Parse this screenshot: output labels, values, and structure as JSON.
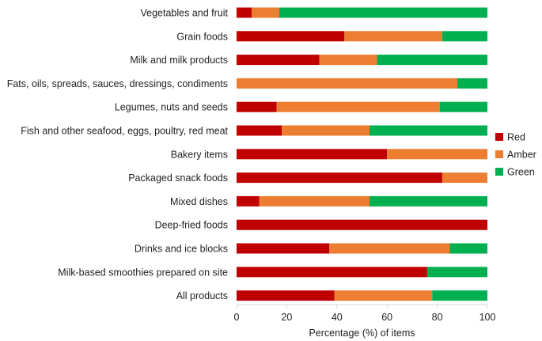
{
  "chart_data": {
    "type": "bar",
    "orientation": "horizontal",
    "stacked": true,
    "title": "",
    "xlabel": "Percentage (%) of items",
    "ylabel": "",
    "xlim": [
      0,
      100
    ],
    "xticks": [
      0,
      20,
      40,
      60,
      80,
      100
    ],
    "grid": false,
    "legend_position": "right",
    "categories": [
      "Vegetables and fruit",
      "Grain foods",
      "Milk and milk products",
      "Fats, oils, spreads, sauces, dressings, condiments",
      "Legumes, nuts and seeds",
      "Fish and other seafood, eggs, poultry, red meat",
      "Bakery items",
      "Packaged snack foods",
      "Mixed dishes",
      "Deep-fried foods",
      "Drinks and ice blocks",
      "Milk-based smoothies prepared on site",
      "All products"
    ],
    "series": [
      {
        "name": "Red",
        "color": "#c00000",
        "values": [
          6,
          43,
          33,
          0,
          16,
          18,
          60,
          82,
          9,
          100,
          37,
          76,
          39
        ]
      },
      {
        "name": "Amber",
        "color": "#ed7d31",
        "values": [
          11,
          39,
          23,
          88,
          65,
          35,
          40,
          18,
          44,
          0,
          48,
          0,
          39
        ]
      },
      {
        "name": "Green",
        "color": "#00b050",
        "values": [
          83,
          18,
          44,
          12,
          19,
          47,
          0,
          0,
          47,
          0,
          15,
          24,
          22
        ]
      }
    ]
  }
}
